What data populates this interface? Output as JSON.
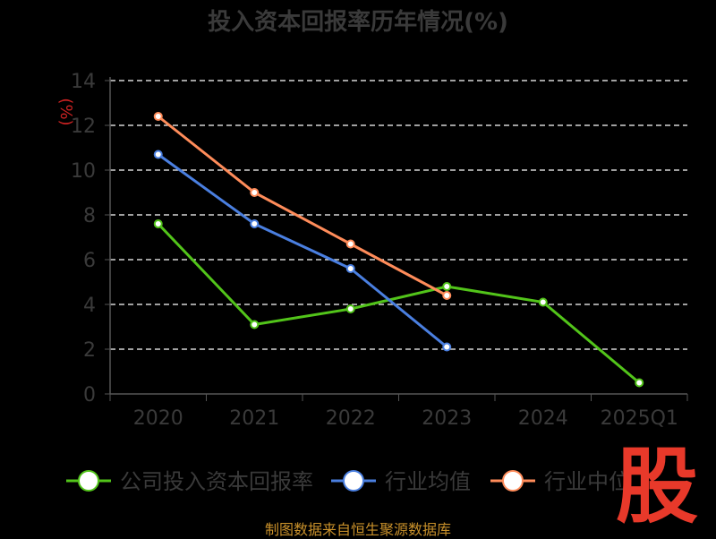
{
  "chart_data": {
    "type": "line",
    "title": "投入资本回报率历年情况(%)",
    "ylabel": "(%)",
    "xlabel": "",
    "categories": [
      "2020",
      "2021",
      "2022",
      "2023",
      "2024",
      "2025Q1"
    ],
    "ylim": [
      0,
      14
    ],
    "yticks": [
      0,
      2,
      4,
      6,
      8,
      10,
      12,
      14
    ],
    "grid": true,
    "legend_position": "bottom",
    "series": [
      {
        "name": "公司投入资本回报率",
        "color": "#52c41a",
        "values": [
          7.6,
          3.1,
          3.8,
          4.8,
          4.1,
          0.5
        ]
      },
      {
        "name": "行业均值",
        "color": "#4a7fe0",
        "values": [
          10.7,
          7.6,
          5.6,
          2.1,
          null,
          null
        ]
      },
      {
        "name": "行业中位",
        "color": "#ff8c5a",
        "values": [
          12.4,
          9.0,
          6.7,
          4.4,
          null,
          null
        ]
      }
    ]
  },
  "source_text": "制图数据来自恒生聚源数据库",
  "watermark_text": "股"
}
